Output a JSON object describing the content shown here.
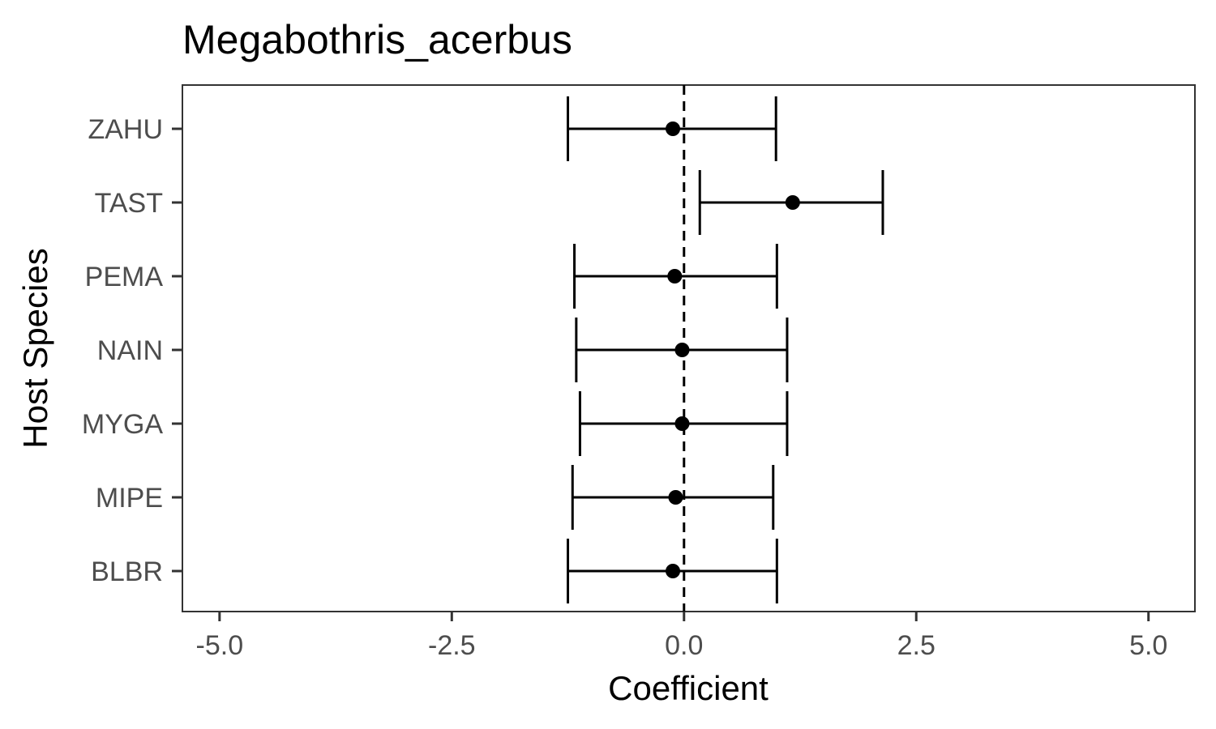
{
  "chart_data": {
    "type": "errorbar",
    "title": "Megabothris_acerbus",
    "xlabel": "Coefficient",
    "ylabel": "Host Species",
    "xlim": [
      -5.4,
      5.5
    ],
    "xticks": [
      -5.0,
      -2.5,
      0.0,
      2.5,
      5.0
    ],
    "xtick_labels": [
      "-5.0",
      "-2.5",
      "0.0",
      "2.5",
      "5.0"
    ],
    "reference_line": {
      "x": 0,
      "style": "dashed"
    },
    "grid": false,
    "categories": [
      "ZAHU",
      "TAST",
      "PEMA",
      "NAIN",
      "MYGA",
      "MIPE",
      "BLBR"
    ],
    "estimates": [
      -0.12,
      1.17,
      -0.1,
      -0.02,
      -0.02,
      -0.09,
      -0.12
    ],
    "lower": [
      -1.25,
      0.17,
      -1.18,
      -1.16,
      -1.12,
      -1.2,
      -1.25
    ],
    "upper": [
      0.99,
      2.14,
      1.0,
      1.11,
      1.11,
      0.96,
      1.0
    ],
    "colors": {
      "points": "#000000",
      "panel_border": "#333333",
      "tick_labels": "#4d4d4d"
    }
  }
}
